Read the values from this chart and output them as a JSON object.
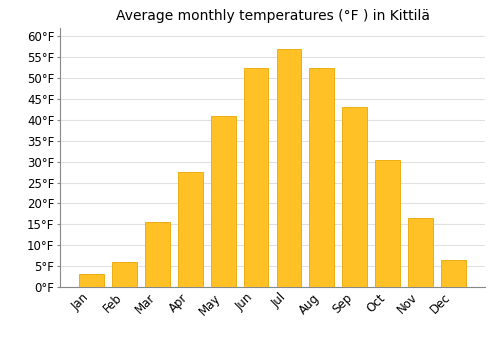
{
  "title": "Average monthly temperatures (°F ) in Kittilä",
  "months": [
    "Jan",
    "Feb",
    "Mar",
    "Apr",
    "May",
    "Jun",
    "Jul",
    "Aug",
    "Sep",
    "Oct",
    "Nov",
    "Dec"
  ],
  "values": [
    3,
    6,
    15.5,
    27.5,
    41,
    52.5,
    57,
    52.5,
    43,
    30.5,
    16.5,
    6.5
  ],
  "bar_color": "#FFC125",
  "bar_edge_color": "#E8A800",
  "ylim": [
    0,
    62
  ],
  "yticks": [
    0,
    5,
    10,
    15,
    20,
    25,
    30,
    35,
    40,
    45,
    50,
    55,
    60
  ],
  "ylabel_suffix": "°F",
  "background_color": "#ffffff",
  "grid_color": "#e0e0e0",
  "title_fontsize": 10,
  "tick_fontsize": 8.5,
  "figsize": [
    5.0,
    3.5
  ],
  "dpi": 100,
  "bar_width": 0.75
}
